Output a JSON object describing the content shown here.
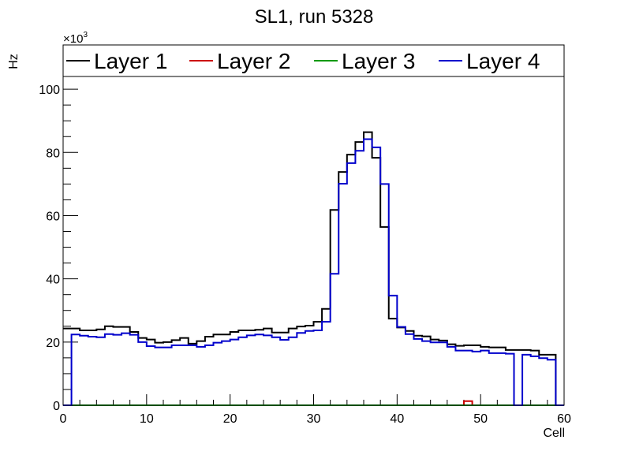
{
  "chart_data": {
    "type": "line",
    "style": "step-histogram",
    "title": "SL1, run 5328",
    "xlabel": "Cell",
    "ylabel": "Hz",
    "y_multiplier_label": "×10",
    "y_multiplier_exp": "3",
    "xlim": [
      0,
      60
    ],
    "ylim": [
      0,
      114
    ],
    "x_ticks": [
      0,
      10,
      20,
      30,
      40,
      50,
      60
    ],
    "y_ticks": [
      0,
      20,
      40,
      60,
      80,
      100
    ],
    "bin_edges_start": 0,
    "bin_width": 1,
    "legend_position": "top",
    "grid": false,
    "series": [
      {
        "name": "Layer 1",
        "color": "#000000",
        "values": [
          24.3,
          24.3,
          23.7,
          23.7,
          24.0,
          25.0,
          24.8,
          24.8,
          23.2,
          21.3,
          20.8,
          19.8,
          20.0,
          20.6,
          21.3,
          19.5,
          20.3,
          21.7,
          22.4,
          22.4,
          23.2,
          23.7,
          23.7,
          23.9,
          24.3,
          23.0,
          23.0,
          24.3,
          24.9,
          25.2,
          26.4,
          30.5,
          61.8,
          73.8,
          79.3,
          83.3,
          86.4,
          78.3,
          56.4,
          27.4,
          24.6,
          23.5,
          22.0,
          21.8,
          20.8,
          20.5,
          19.3,
          18.8,
          19.0,
          19.0,
          18.5,
          18.3,
          18.3,
          17.5,
          17.5,
          17.5,
          17.3,
          16.0,
          16.0,
          0
        ]
      },
      {
        "name": "Layer 2",
        "color": "#cc0000",
        "values": [
          0,
          0,
          0,
          0,
          0,
          0,
          0,
          0,
          0,
          0,
          0,
          0,
          0,
          0,
          0,
          0,
          0,
          0,
          0,
          0,
          0,
          0,
          0,
          0,
          0,
          0,
          0,
          0,
          0,
          0,
          0,
          0,
          0,
          0,
          0,
          0,
          0,
          0,
          0,
          0,
          0,
          0,
          0,
          0,
          0,
          0,
          0,
          0,
          1.3,
          0,
          0,
          0,
          0,
          0,
          0,
          0,
          0,
          0,
          0,
          0
        ]
      },
      {
        "name": "Layer 3",
        "color": "#009900",
        "values": [
          0,
          0,
          0,
          0,
          0,
          0,
          0,
          0,
          0,
          0,
          0,
          0,
          0,
          0,
          0,
          0,
          0,
          0,
          0,
          0,
          0,
          0,
          0,
          0,
          0,
          0,
          0,
          0,
          0,
          0,
          0,
          0,
          0,
          0,
          0,
          0,
          0,
          0,
          0,
          0,
          0,
          0,
          0,
          0,
          0,
          0,
          0,
          0,
          0,
          0,
          0,
          0,
          0,
          0,
          0,
          0,
          0,
          0,
          0,
          0
        ]
      },
      {
        "name": "Layer 4",
        "color": "#0000cc",
        "values": [
          0,
          22.4,
          22.0,
          21.7,
          21.5,
          22.5,
          22.3,
          22.8,
          22.3,
          20.0,
          18.7,
          18.3,
          18.3,
          19.0,
          19.0,
          19.0,
          18.5,
          19.0,
          19.8,
          20.3,
          20.8,
          21.5,
          22.1,
          22.4,
          22.1,
          21.5,
          20.7,
          21.5,
          22.9,
          23.5,
          23.7,
          26.4,
          41.6,
          70.1,
          76.6,
          80.5,
          84.2,
          81.6,
          70.0,
          34.7,
          24.8,
          22.5,
          21.0,
          20.3,
          19.9,
          19.9,
          18.5,
          17.3,
          17.3,
          17.0,
          17.3,
          16.5,
          16.5,
          16.3,
          0,
          16.0,
          15.5,
          14.9,
          14.4,
          0
        ]
      }
    ]
  }
}
